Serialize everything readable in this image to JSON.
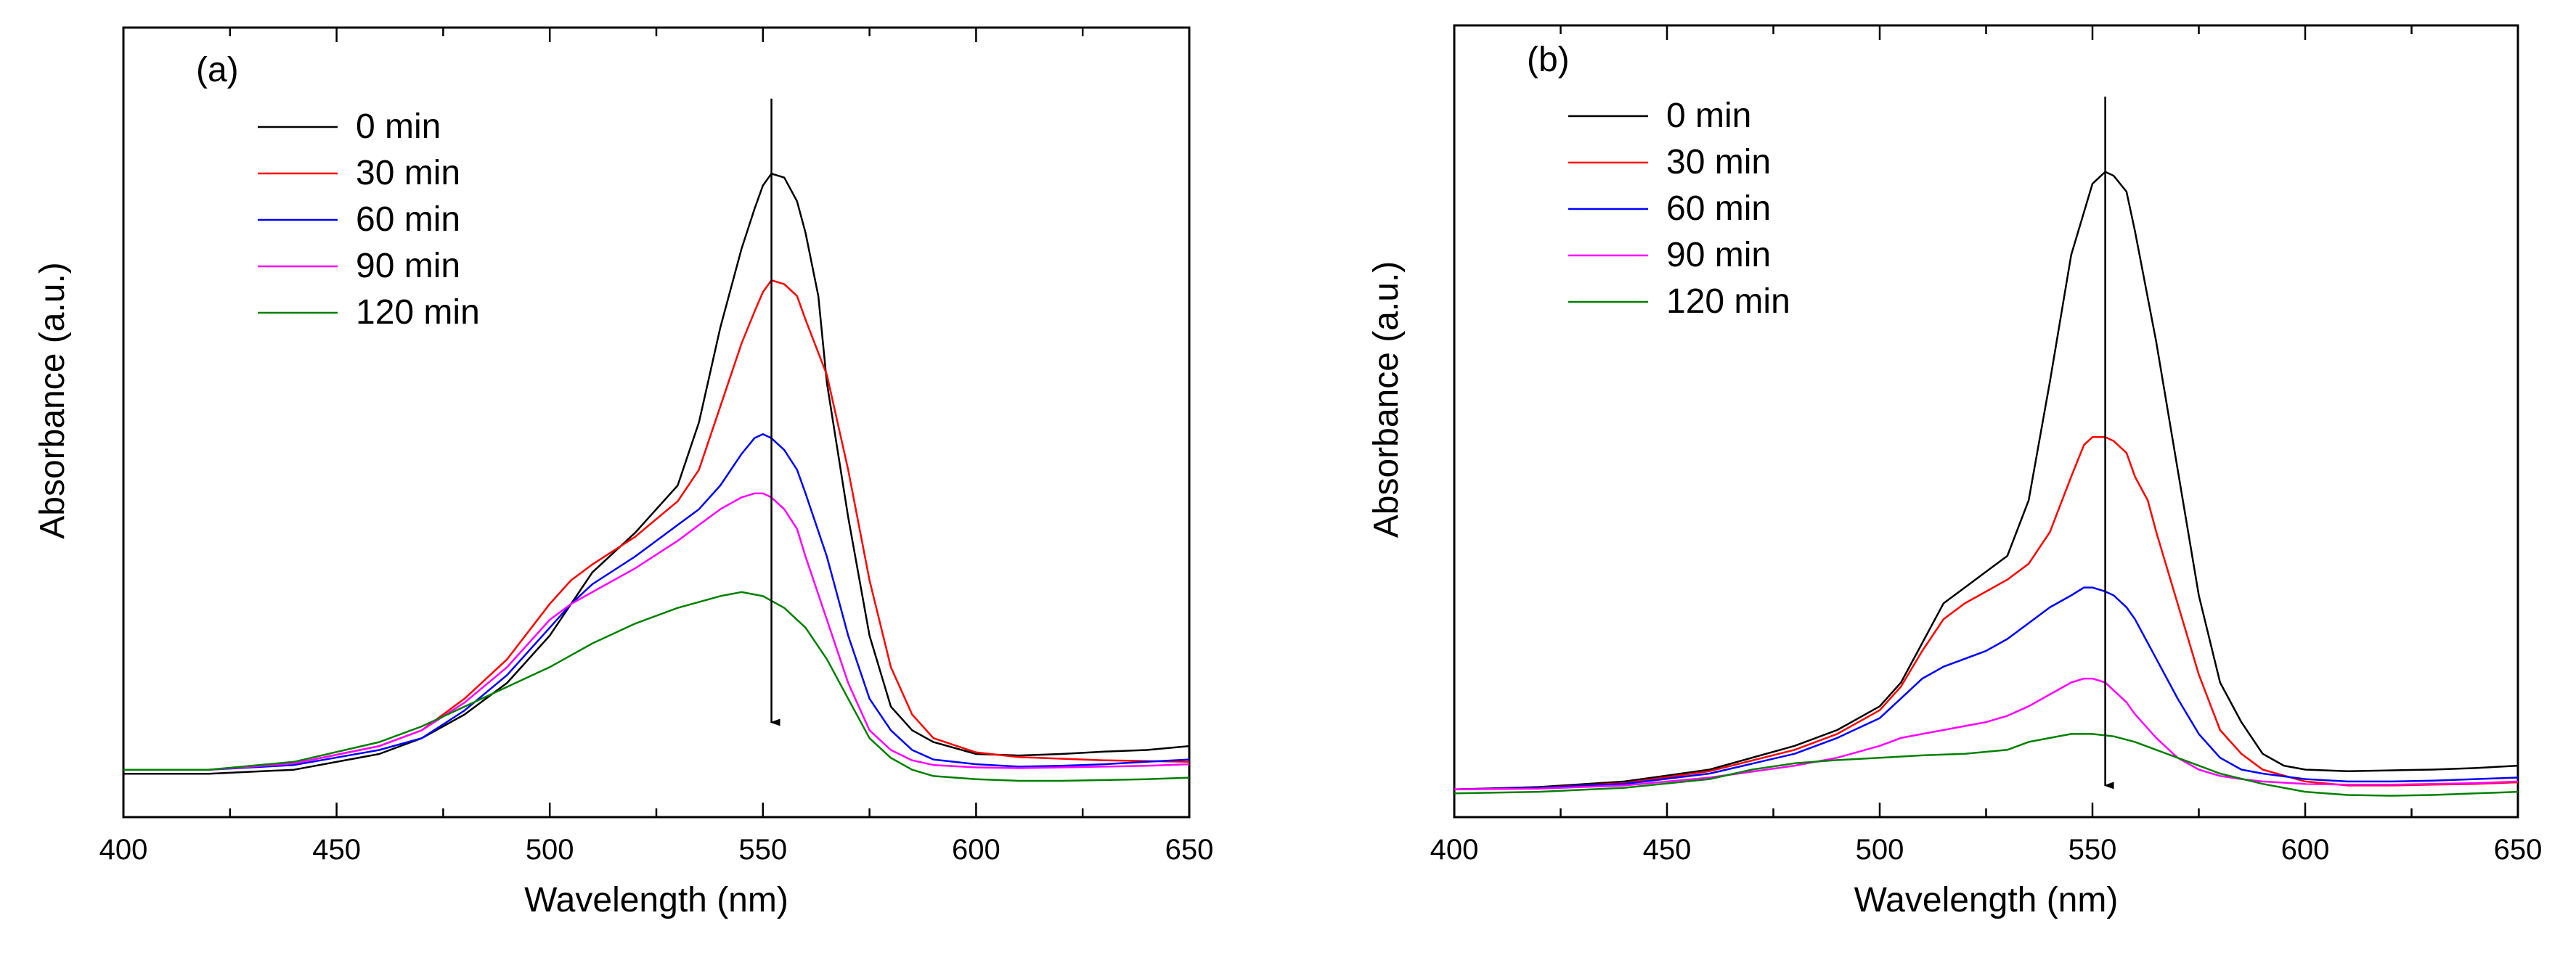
{
  "colors": {
    "0 min": "#000000",
    "30 min": "#ff0000",
    "60 min": "#0000ff",
    "90 min": "#ff00ff",
    "120 min": "#008000"
  },
  "chart_data": [
    {
      "type": "line",
      "panel_label": "(a)",
      "xlabel": "Wavelength (nm)",
      "ylabel": "Absorbance (a.u.)",
      "xlim": [
        400,
        650
      ],
      "ylim": [
        0,
        1.0
      ],
      "xticks": [
        "400",
        "450",
        "500",
        "550",
        "600",
        "650"
      ],
      "legend_position": "top-left",
      "annotation": "downward arrow at ~552 nm indicating decreasing absorbance over time",
      "arrow_x": 552,
      "arrow_y": [
        0.91,
        0.12
      ],
      "series": [
        {
          "name": "0 min",
          "x": [
            400,
            420,
            440,
            460,
            470,
            480,
            490,
            500,
            505,
            510,
            520,
            530,
            535,
            540,
            545,
            548,
            550,
            552,
            555,
            558,
            560,
            563,
            565,
            570,
            575,
            580,
            585,
            590,
            600,
            610,
            620,
            630,
            640,
            650
          ],
          "y": [
            0.055,
            0.055,
            0.06,
            0.08,
            0.1,
            0.13,
            0.17,
            0.23,
            0.27,
            0.31,
            0.36,
            0.42,
            0.5,
            0.62,
            0.72,
            0.77,
            0.8,
            0.815,
            0.81,
            0.78,
            0.74,
            0.66,
            0.55,
            0.38,
            0.23,
            0.14,
            0.11,
            0.095,
            0.08,
            0.078,
            0.08,
            0.083,
            0.085,
            0.09
          ]
        },
        {
          "name": "30 min",
          "x": [
            400,
            420,
            440,
            460,
            470,
            480,
            490,
            500,
            505,
            510,
            520,
            530,
            535,
            540,
            545,
            548,
            550,
            552,
            555,
            558,
            560,
            565,
            570,
            575,
            580,
            585,
            590,
            600,
            610,
            620,
            630,
            640,
            650
          ],
          "y": [
            0.06,
            0.06,
            0.068,
            0.09,
            0.11,
            0.15,
            0.2,
            0.27,
            0.3,
            0.32,
            0.355,
            0.4,
            0.44,
            0.52,
            0.6,
            0.64,
            0.665,
            0.68,
            0.675,
            0.66,
            0.63,
            0.56,
            0.44,
            0.3,
            0.19,
            0.13,
            0.1,
            0.082,
            0.076,
            0.074,
            0.072,
            0.071,
            0.07
          ]
        },
        {
          "name": "60 min",
          "x": [
            400,
            420,
            440,
            460,
            470,
            480,
            490,
            500,
            505,
            510,
            520,
            530,
            535,
            540,
            545,
            548,
            550,
            552,
            555,
            558,
            560,
            565,
            570,
            575,
            580,
            585,
            590,
            600,
            610,
            620,
            630,
            640,
            650
          ],
          "y": [
            0.06,
            0.06,
            0.066,
            0.085,
            0.1,
            0.135,
            0.18,
            0.24,
            0.27,
            0.295,
            0.33,
            0.37,
            0.39,
            0.42,
            0.46,
            0.48,
            0.485,
            0.48,
            0.465,
            0.44,
            0.41,
            0.33,
            0.23,
            0.15,
            0.11,
            0.085,
            0.073,
            0.067,
            0.064,
            0.065,
            0.067,
            0.07,
            0.073
          ]
        },
        {
          "name": "90 min",
          "x": [
            400,
            420,
            440,
            460,
            470,
            480,
            490,
            500,
            505,
            510,
            520,
            530,
            535,
            540,
            545,
            548,
            550,
            552,
            555,
            558,
            560,
            565,
            570,
            575,
            580,
            585,
            590,
            600,
            610,
            620,
            630,
            640,
            650
          ],
          "y": [
            0.06,
            0.06,
            0.068,
            0.09,
            0.11,
            0.145,
            0.19,
            0.25,
            0.27,
            0.285,
            0.315,
            0.35,
            0.37,
            0.39,
            0.405,
            0.41,
            0.41,
            0.405,
            0.39,
            0.365,
            0.33,
            0.25,
            0.17,
            0.11,
            0.085,
            0.072,
            0.066,
            0.063,
            0.062,
            0.063,
            0.064,
            0.065,
            0.067
          ]
        },
        {
          "name": "120 min",
          "x": [
            400,
            420,
            440,
            460,
            470,
            480,
            490,
            500,
            510,
            520,
            530,
            540,
            545,
            550,
            555,
            560,
            565,
            570,
            575,
            580,
            585,
            590,
            600,
            610,
            620,
            630,
            640,
            650
          ],
          "y": [
            0.06,
            0.06,
            0.07,
            0.095,
            0.115,
            0.14,
            0.165,
            0.19,
            0.22,
            0.245,
            0.265,
            0.28,
            0.285,
            0.28,
            0.265,
            0.24,
            0.2,
            0.15,
            0.1,
            0.075,
            0.06,
            0.052,
            0.048,
            0.046,
            0.046,
            0.047,
            0.048,
            0.05
          ]
        }
      ]
    },
    {
      "type": "line",
      "panel_label": "(b)",
      "xlabel": "Wavelength (nm)",
      "ylabel": "Absorbance (a.u.)",
      "xlim": [
        400,
        650
      ],
      "ylim": [
        0,
        1.0
      ],
      "xticks": [
        "400",
        "450",
        "500",
        "550",
        "600",
        "650"
      ],
      "legend_position": "top-left",
      "annotation": "downward arrow at ~553 nm indicating decreasing absorbance over time",
      "arrow_x": 553,
      "arrow_y": [
        0.91,
        0.04
      ],
      "series": [
        {
          "name": "0 min",
          "x": [
            400,
            420,
            440,
            460,
            480,
            490,
            500,
            505,
            510,
            515,
            520,
            525,
            530,
            535,
            540,
            545,
            550,
            553,
            555,
            558,
            560,
            565,
            570,
            575,
            580,
            585,
            590,
            595,
            600,
            610,
            620,
            630,
            640,
            650
          ],
          "y": [
            0.035,
            0.038,
            0.045,
            0.06,
            0.09,
            0.11,
            0.14,
            0.17,
            0.22,
            0.27,
            0.29,
            0.31,
            0.33,
            0.4,
            0.55,
            0.71,
            0.8,
            0.815,
            0.81,
            0.79,
            0.74,
            0.6,
            0.44,
            0.28,
            0.17,
            0.12,
            0.08,
            0.065,
            0.06,
            0.058,
            0.059,
            0.06,
            0.062,
            0.065
          ]
        },
        {
          "name": "30 min",
          "x": [
            400,
            420,
            440,
            460,
            480,
            490,
            500,
            505,
            510,
            515,
            520,
            525,
            530,
            535,
            540,
            545,
            548,
            550,
            553,
            555,
            558,
            560,
            563,
            565,
            570,
            575,
            580,
            585,
            590,
            600,
            610,
            620,
            630,
            640,
            650
          ],
          "y": [
            0.035,
            0.037,
            0.043,
            0.058,
            0.085,
            0.105,
            0.135,
            0.165,
            0.21,
            0.25,
            0.27,
            0.285,
            0.3,
            0.32,
            0.36,
            0.43,
            0.47,
            0.48,
            0.48,
            0.475,
            0.46,
            0.43,
            0.4,
            0.36,
            0.27,
            0.18,
            0.11,
            0.08,
            0.06,
            0.045,
            0.04,
            0.04,
            0.041,
            0.042,
            0.044
          ]
        },
        {
          "name": "60 min",
          "x": [
            400,
            420,
            440,
            460,
            480,
            490,
            500,
            505,
            510,
            515,
            520,
            525,
            530,
            535,
            540,
            545,
            548,
            550,
            553,
            555,
            558,
            560,
            565,
            570,
            575,
            580,
            585,
            590,
            600,
            610,
            620,
            630,
            640,
            650
          ],
          "y": [
            0.035,
            0.037,
            0.042,
            0.055,
            0.08,
            0.1,
            0.125,
            0.15,
            0.175,
            0.19,
            0.2,
            0.21,
            0.225,
            0.245,
            0.265,
            0.28,
            0.29,
            0.29,
            0.285,
            0.28,
            0.265,
            0.25,
            0.2,
            0.15,
            0.105,
            0.075,
            0.06,
            0.055,
            0.048,
            0.045,
            0.045,
            0.046,
            0.048,
            0.05
          ]
        },
        {
          "name": "90 min",
          "x": [
            400,
            420,
            440,
            460,
            480,
            490,
            500,
            505,
            510,
            515,
            520,
            525,
            530,
            535,
            540,
            545,
            548,
            550,
            553,
            555,
            558,
            560,
            565,
            570,
            575,
            580,
            585,
            590,
            600,
            610,
            620,
            630,
            640,
            650
          ],
          "y": [
            0.035,
            0.036,
            0.04,
            0.05,
            0.065,
            0.075,
            0.09,
            0.1,
            0.105,
            0.11,
            0.115,
            0.12,
            0.128,
            0.14,
            0.155,
            0.17,
            0.175,
            0.175,
            0.17,
            0.16,
            0.145,
            0.13,
            0.1,
            0.075,
            0.06,
            0.052,
            0.048,
            0.045,
            0.042,
            0.041,
            0.041,
            0.042,
            0.043,
            0.045
          ]
        },
        {
          "name": "120 min",
          "x": [
            400,
            420,
            440,
            460,
            470,
            480,
            490,
            500,
            510,
            520,
            530,
            535,
            540,
            545,
            550,
            555,
            560,
            565,
            570,
            575,
            580,
            590,
            600,
            610,
            620,
            630,
            640,
            650
          ],
          "y": [
            0.03,
            0.032,
            0.037,
            0.048,
            0.06,
            0.068,
            0.072,
            0.075,
            0.078,
            0.08,
            0.085,
            0.095,
            0.1,
            0.105,
            0.105,
            0.102,
            0.095,
            0.085,
            0.075,
            0.065,
            0.055,
            0.042,
            0.032,
            0.028,
            0.027,
            0.028,
            0.03,
            0.032
          ]
        }
      ]
    }
  ]
}
